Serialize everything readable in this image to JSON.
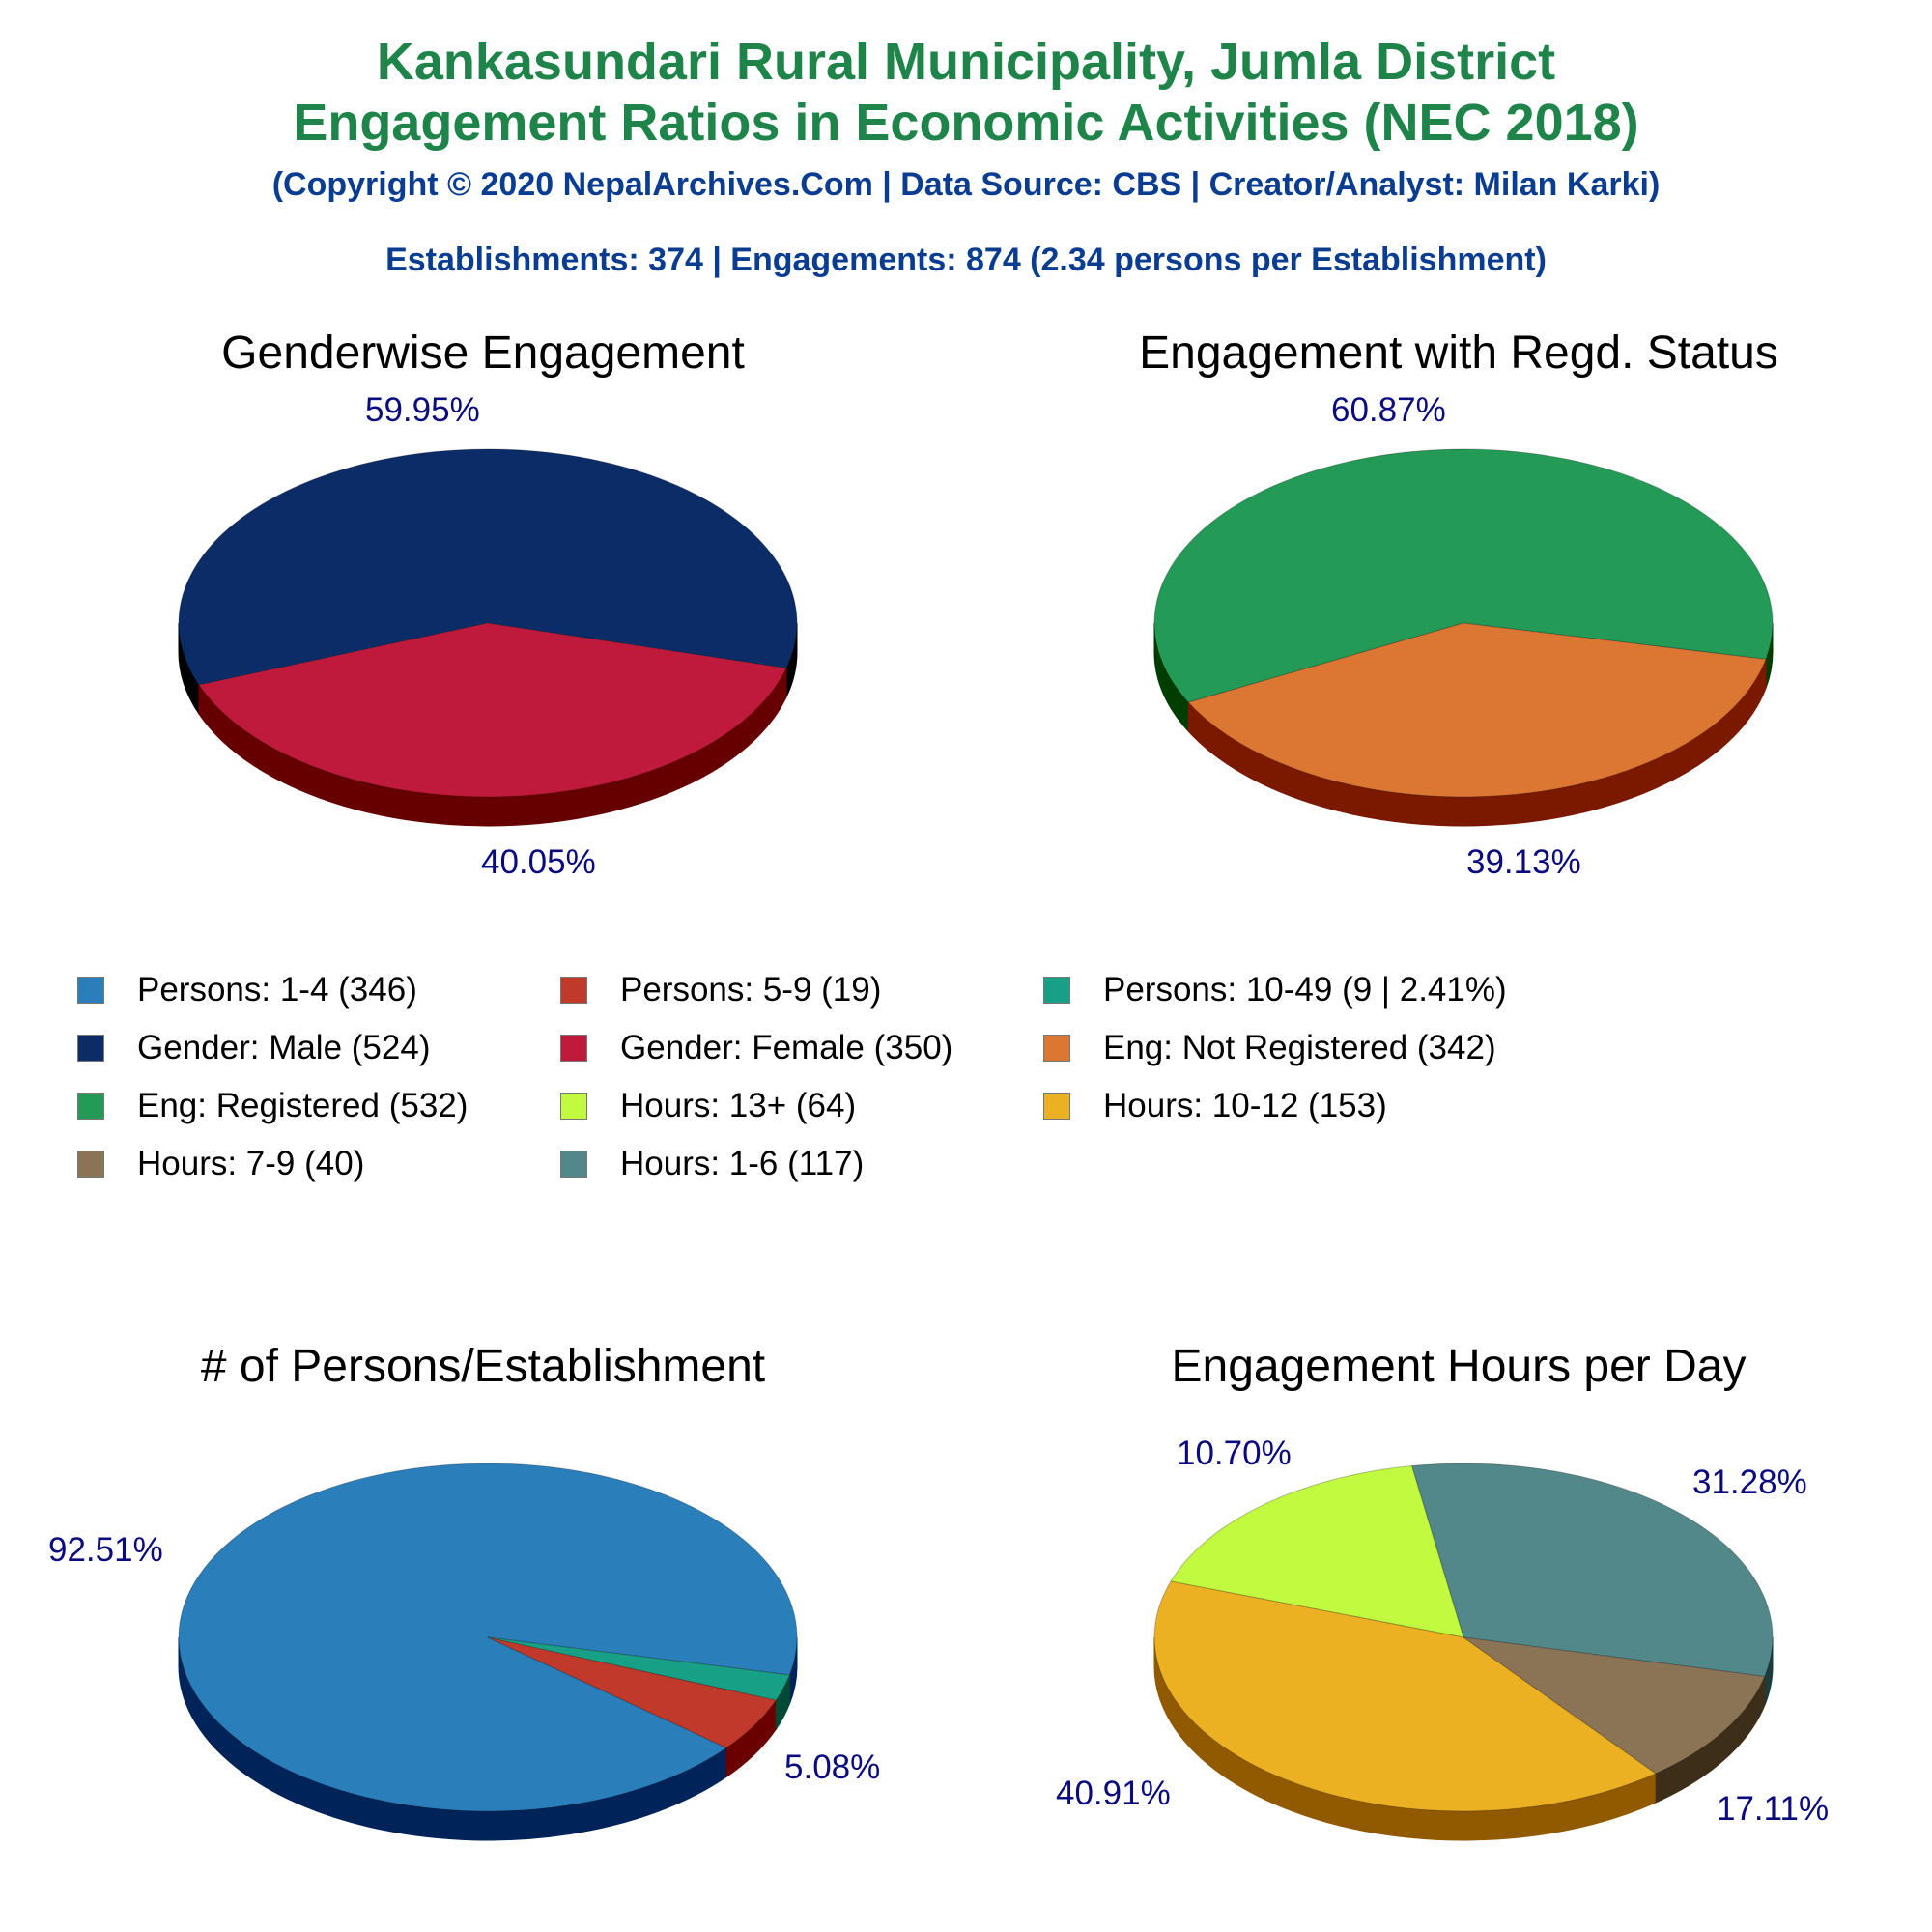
{
  "header": {
    "title_line1": "Kankasundari Rural Municipality, Jumla District",
    "title_line2": "Engagement Ratios in Economic Activities (NEC 2018)",
    "copyright": "(Copyright © 2020 NepalArchives.Com | Data Source: CBS | Creator/Analyst: Milan Karki)",
    "summary": "Establishments: 374 | Engagements: 874 (2.34 persons per Establishment)"
  },
  "colors": {
    "title": "#1e8449",
    "subtitle": "#0a3d91",
    "percent_label": "#0b0b80"
  },
  "legend": [
    {
      "label": "Persons: 1-4 (346)",
      "color": "#2a7fba"
    },
    {
      "label": "Persons: 5-9 (19)",
      "color": "#c0392b"
    },
    {
      "label": "Persons: 10-49 (9 | 2.41%)",
      "color": "#17a085"
    },
    {
      "label": "Gender: Male (524)",
      "color": "#0b2c67"
    },
    {
      "label": "Gender: Female (350)",
      "color": "#bf1a3c"
    },
    {
      "label": "Eng: Not Registered (342)",
      "color": "#dc7633"
    },
    {
      "label": "Eng: Registered (532)",
      "color": "#239b56"
    },
    {
      "label": "Hours: 13+ (64)",
      "color": "#c1fa3e"
    },
    {
      "label": "Hours: 10-12 (153)",
      "color": "#ecb122"
    },
    {
      "label": "Hours: 7-9 (40)",
      "color": "#8b7355"
    },
    {
      "label": "Hours: 1-6 (117)",
      "color": "#52888a"
    }
  ],
  "chart_data": [
    {
      "type": "pie",
      "title": "Genderwise Engagement",
      "slices": [
        {
          "label": "Gender: Male",
          "value": 524,
          "percent": 59.95,
          "percent_label": "59.95%",
          "color": "#0b2c67",
          "side": "#000000"
        },
        {
          "label": "Gender: Female",
          "value": 350,
          "percent": 40.05,
          "percent_label": "40.05%",
          "color": "#bf1a3c",
          "side": "#660000"
        }
      ]
    },
    {
      "type": "pie",
      "title": "Engagement with Regd. Status",
      "slices": [
        {
          "label": "Eng: Registered",
          "value": 532,
          "percent": 60.87,
          "percent_label": "60.87%",
          "color": "#239b56",
          "side": "#003d00"
        },
        {
          "label": "Eng: Not Registered",
          "value": 342,
          "percent": 39.13,
          "percent_label": "39.13%",
          "color": "#dc7633",
          "side": "#7b1800"
        }
      ]
    },
    {
      "type": "pie",
      "title": "# of Persons/Establishment",
      "slices": [
        {
          "label": "Persons: 1-4",
          "value": 346,
          "percent": 92.51,
          "percent_label": "92.51%",
          "color": "#2a7fba",
          "side": "#00235a"
        },
        {
          "label": "Persons: 5-9",
          "value": 19,
          "percent": 5.08,
          "percent_label": "5.08%",
          "color": "#c0392b",
          "side": "#6a0000"
        },
        {
          "label": "Persons: 10-49",
          "value": 9,
          "percent": 2.41,
          "percent_label": "",
          "color": "#17a085",
          "side": "#004a35"
        }
      ]
    },
    {
      "type": "pie",
      "title": "Engagement Hours per Day",
      "slices": [
        {
          "label": "Hours: 1-6",
          "value": 117,
          "percent": 31.28,
          "percent_label": "31.28%",
          "color": "#52888a",
          "side": "#1c3c3e"
        },
        {
          "label": "Hours: 13+",
          "value": 64,
          "percent": 17.11,
          "percent_label": "17.11%",
          "color": "#c1fa3e",
          "side": "#5fa100"
        },
        {
          "label": "Hours: 10-12",
          "value": 153,
          "percent": 40.91,
          "percent_label": "40.91%",
          "color": "#ecb122",
          "side": "#915a00"
        },
        {
          "label": "Hours: 7-9",
          "value": 40,
          "percent": 10.7,
          "percent_label": "10.70%",
          "color": "#8b7355",
          "side": "#3d2e1a"
        }
      ]
    }
  ]
}
